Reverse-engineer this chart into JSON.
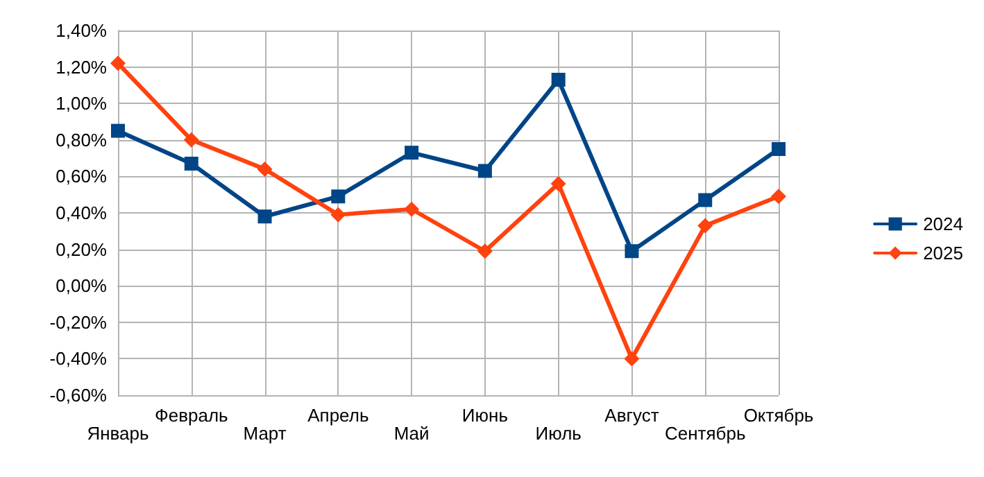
{
  "chart_data": {
    "type": "line",
    "categories": [
      "Январь",
      "Февраль",
      "Март",
      "Апрель",
      "Май",
      "Июнь",
      "Июль",
      "Август",
      "Сентябрь",
      "Октябрь"
    ],
    "series": [
      {
        "name": "2024",
        "color": "#004586",
        "marker": "square",
        "values": [
          0.85,
          0.67,
          0.38,
          0.49,
          0.73,
          0.63,
          1.13,
          0.19,
          0.47,
          0.75
        ]
      },
      {
        "name": "2025",
        "color": "#ff420e",
        "marker": "diamond",
        "values": [
          1.22,
          0.8,
          0.64,
          0.39,
          0.42,
          0.19,
          0.56,
          -0.4,
          0.33,
          0.49
        ]
      }
    ],
    "ylim": [
      -0.6,
      1.4
    ],
    "yticks": [
      {
        "value": -0.6,
        "label": "-0,60%"
      },
      {
        "value": -0.4,
        "label": "-0,40%"
      },
      {
        "value": -0.2,
        "label": "-0,20%"
      },
      {
        "value": 0,
        "label": "0,00%"
      },
      {
        "value": 0.2,
        "label": "0,20%"
      },
      {
        "value": 0.4,
        "label": "0,40%"
      },
      {
        "value": 0.6,
        "label": "0,60%"
      },
      {
        "value": 0.8,
        "label": "0,80%"
      },
      {
        "value": 1.0,
        "label": "1,00%"
      },
      {
        "value": 1.2,
        "label": "1,20%"
      },
      {
        "value": 1.4,
        "label": "1,40%"
      }
    ],
    "grid": true,
    "legend": "right",
    "line_style": "solid"
  }
}
